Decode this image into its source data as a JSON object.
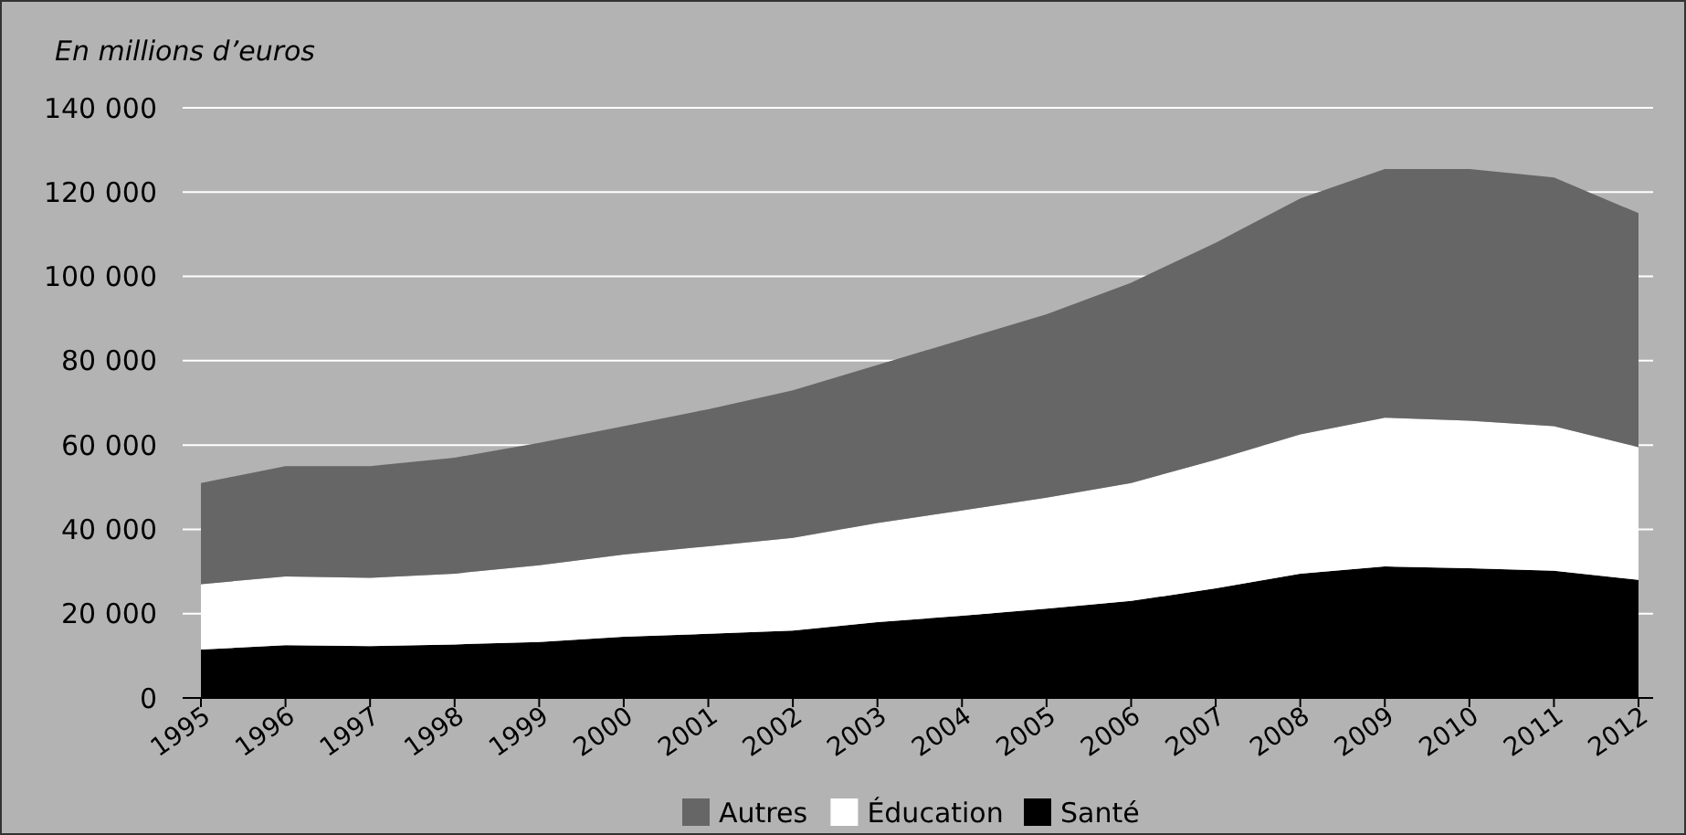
{
  "chart_data": {
    "type": "area",
    "stacked": true,
    "ylabel": "En millions d’euros",
    "categories": [
      "1995",
      "1996",
      "1997",
      "1998",
      "1999",
      "2000",
      "2001",
      "2002",
      "2003",
      "2004",
      "2005",
      "2006",
      "2007",
      "2008",
      "2009",
      "2010",
      "2011",
      "2012"
    ],
    "series": [
      {
        "name": "Santé",
        "color": "#000000",
        "values": [
          11500,
          12500,
          12300,
          12700,
          13300,
          14500,
          15200,
          16000,
          18000,
          19500,
          21200,
          23000,
          26000,
          29500,
          31200,
          30800,
          30200,
          28000
        ]
      },
      {
        "name": "Éducation",
        "color": "#ffffff",
        "values": [
          15500,
          16300,
          16200,
          16800,
          18200,
          19500,
          20800,
          22000,
          23500,
          25000,
          26300,
          28000,
          30500,
          33000,
          35300,
          35000,
          34300,
          31500
        ]
      },
      {
        "name": "Autres",
        "color": "#666666",
        "values": [
          24000,
          26200,
          26500,
          27500,
          29000,
          30500,
          32500,
          35000,
          37500,
          40500,
          43500,
          47500,
          51500,
          56000,
          59000,
          59700,
          59000,
          55500
        ]
      }
    ],
    "ylim": [
      0,
      140000
    ],
    "yticks": [
      {
        "value": 0,
        "label": "0"
      },
      {
        "value": 20000,
        "label": "20 000"
      },
      {
        "value": 40000,
        "label": "40 000"
      },
      {
        "value": 60000,
        "label": "60 000"
      },
      {
        "value": 80000,
        "label": "80 000"
      },
      {
        "value": 100000,
        "label": "100 000"
      },
      {
        "value": 120000,
        "label": "120 000"
      },
      {
        "value": 140000,
        "label": "140 000"
      }
    ],
    "grid": "y",
    "legend": "bottom"
  }
}
